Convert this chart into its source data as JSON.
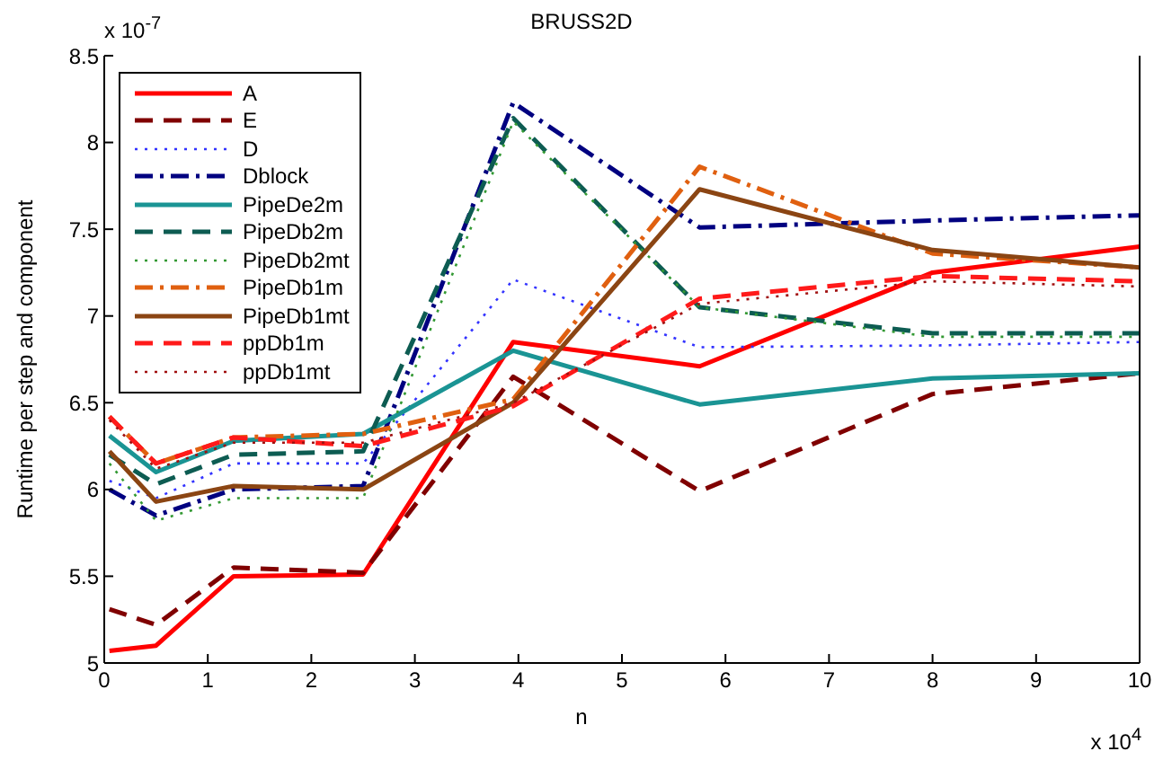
{
  "chart_data": {
    "type": "line",
    "title": "BRUSS2D",
    "xlabel": "n",
    "ylabel": "Runtime per step and component",
    "annotations": [
      "x 10$^{-7}$",
      "x 10$^{4}$"
    ],
    "x": [
      0.05,
      0.5,
      1.25,
      2.5,
      3.95,
      5.75,
      8,
      10
    ],
    "series": [
      {
        "name": "A",
        "color": "#ff0000",
        "line_style": "solid",
        "values": [
          5.07,
          5.1,
          5.5,
          5.51,
          6.85,
          6.71,
          7.25,
          7.4
        ]
      },
      {
        "name": "E",
        "color": "#800000",
        "line_style": "dashed",
        "values": [
          5.31,
          5.22,
          5.55,
          5.52,
          6.65,
          5.99,
          6.55,
          6.67
        ]
      },
      {
        "name": "D",
        "color": "#3333ff",
        "line_style": "dotted",
        "values": [
          6.05,
          5.95,
          6.15,
          6.15,
          7.21,
          6.82,
          6.83,
          6.85
        ]
      },
      {
        "name": "Dblock",
        "color": "#000080",
        "line_style": "dashdot",
        "values": [
          6.0,
          5.85,
          6.0,
          6.02,
          8.23,
          7.51,
          7.55,
          7.58
        ]
      },
      {
        "name": "PipeDe2m",
        "color": "#1a9494",
        "line_style": "solid",
        "values": [
          6.31,
          6.1,
          6.28,
          6.32,
          6.8,
          6.49,
          6.64,
          6.67
        ]
      },
      {
        "name": "PipeDb2m",
        "color": "#0d5c52",
        "line_style": "dashed",
        "values": [
          6.2,
          6.03,
          6.2,
          6.22,
          8.14,
          7.05,
          6.9,
          6.9
        ]
      },
      {
        "name": "PipeDb2mt",
        "color": "#339933",
        "line_style": "dotted",
        "values": [
          6.15,
          5.82,
          5.95,
          5.95,
          8.12,
          7.05,
          6.88,
          6.88
        ]
      },
      {
        "name": "PipeDb1m",
        "color": "#e06010",
        "line_style": "dashdot",
        "values": [
          6.42,
          6.15,
          6.3,
          6.32,
          6.52,
          7.86,
          7.36,
          7.28
        ]
      },
      {
        "name": "PipeDb1mt",
        "color": "#8b4513",
        "line_style": "solid",
        "values": [
          6.22,
          5.93,
          6.02,
          6.0,
          6.5,
          7.73,
          7.38,
          7.28
        ]
      },
      {
        "name": "ppDb1m",
        "color": "#ff1a1a",
        "line_style": "dashed",
        "values": [
          6.42,
          6.15,
          6.3,
          6.25,
          6.48,
          7.1,
          7.23,
          7.2
        ]
      },
      {
        "name": "ppDb1mt",
        "color": "#a01010",
        "line_style": "dotted",
        "values": [
          6.4,
          6.12,
          6.27,
          6.27,
          6.5,
          7.07,
          7.2,
          7.17
        ]
      }
    ],
    "xlim": [
      0,
      10
    ],
    "xticks": [
      0,
      1,
      2,
      3,
      4,
      5,
      6,
      7,
      8,
      9,
      10
    ],
    "ylim": [
      5,
      8.5
    ],
    "yticks": [
      5,
      5.5,
      6,
      6.5,
      7,
      7.5,
      8,
      8.5
    ],
    "grid": false,
    "legend": "top left",
    "marker": "none"
  }
}
